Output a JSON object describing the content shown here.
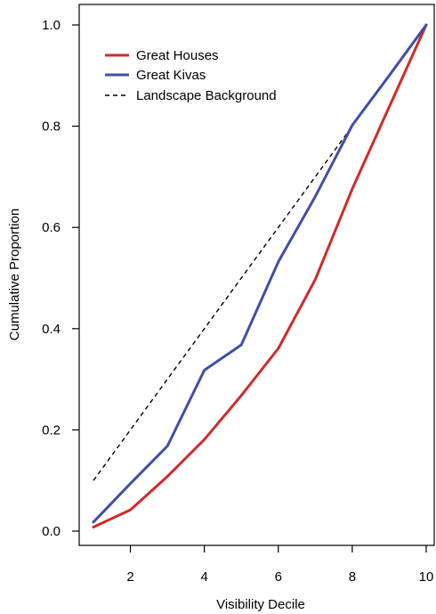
{
  "chart_data": {
    "type": "line",
    "xlabel": "Visibility Decile",
    "ylabel": "Cumulative Proportion",
    "xlim": [
      1,
      10
    ],
    "ylim": [
      0,
      1
    ],
    "x_ticks": [
      2,
      4,
      6,
      8,
      10
    ],
    "x_tick_labels": [
      "2",
      "4",
      "6",
      "8",
      "10"
    ],
    "y_ticks": [
      0,
      0.2,
      0.4,
      0.6,
      0.8,
      1
    ],
    "y_tick_labels": [
      "0.0",
      "0.2",
      "0.4",
      "0.6",
      "0.8",
      "1.0"
    ],
    "grid": false,
    "legend_position": "top-left",
    "x": [
      1,
      2,
      3,
      4,
      5,
      6,
      7,
      8,
      9,
      10
    ],
    "series": [
      {
        "name": "Great Houses",
        "color": "#d02a2a",
        "style": "solid",
        "values": [
          0.008,
          0.042,
          0.108,
          0.181,
          0.268,
          0.361,
          0.497,
          0.676,
          0.838,
          1.0
        ]
      },
      {
        "name": "Great Kivas",
        "color": "#3f4fa8",
        "style": "solid",
        "values": [
          0.018,
          0.094,
          0.168,
          0.318,
          0.368,
          0.532,
          0.661,
          0.802,
          0.9,
          1.0
        ]
      },
      {
        "name": "Landscape Background",
        "color": "#000000",
        "style": "dashed",
        "values": [
          0.1,
          0.2,
          0.3,
          0.4,
          0.5,
          0.6,
          0.7,
          0.8,
          0.9,
          1.0
        ]
      }
    ]
  }
}
